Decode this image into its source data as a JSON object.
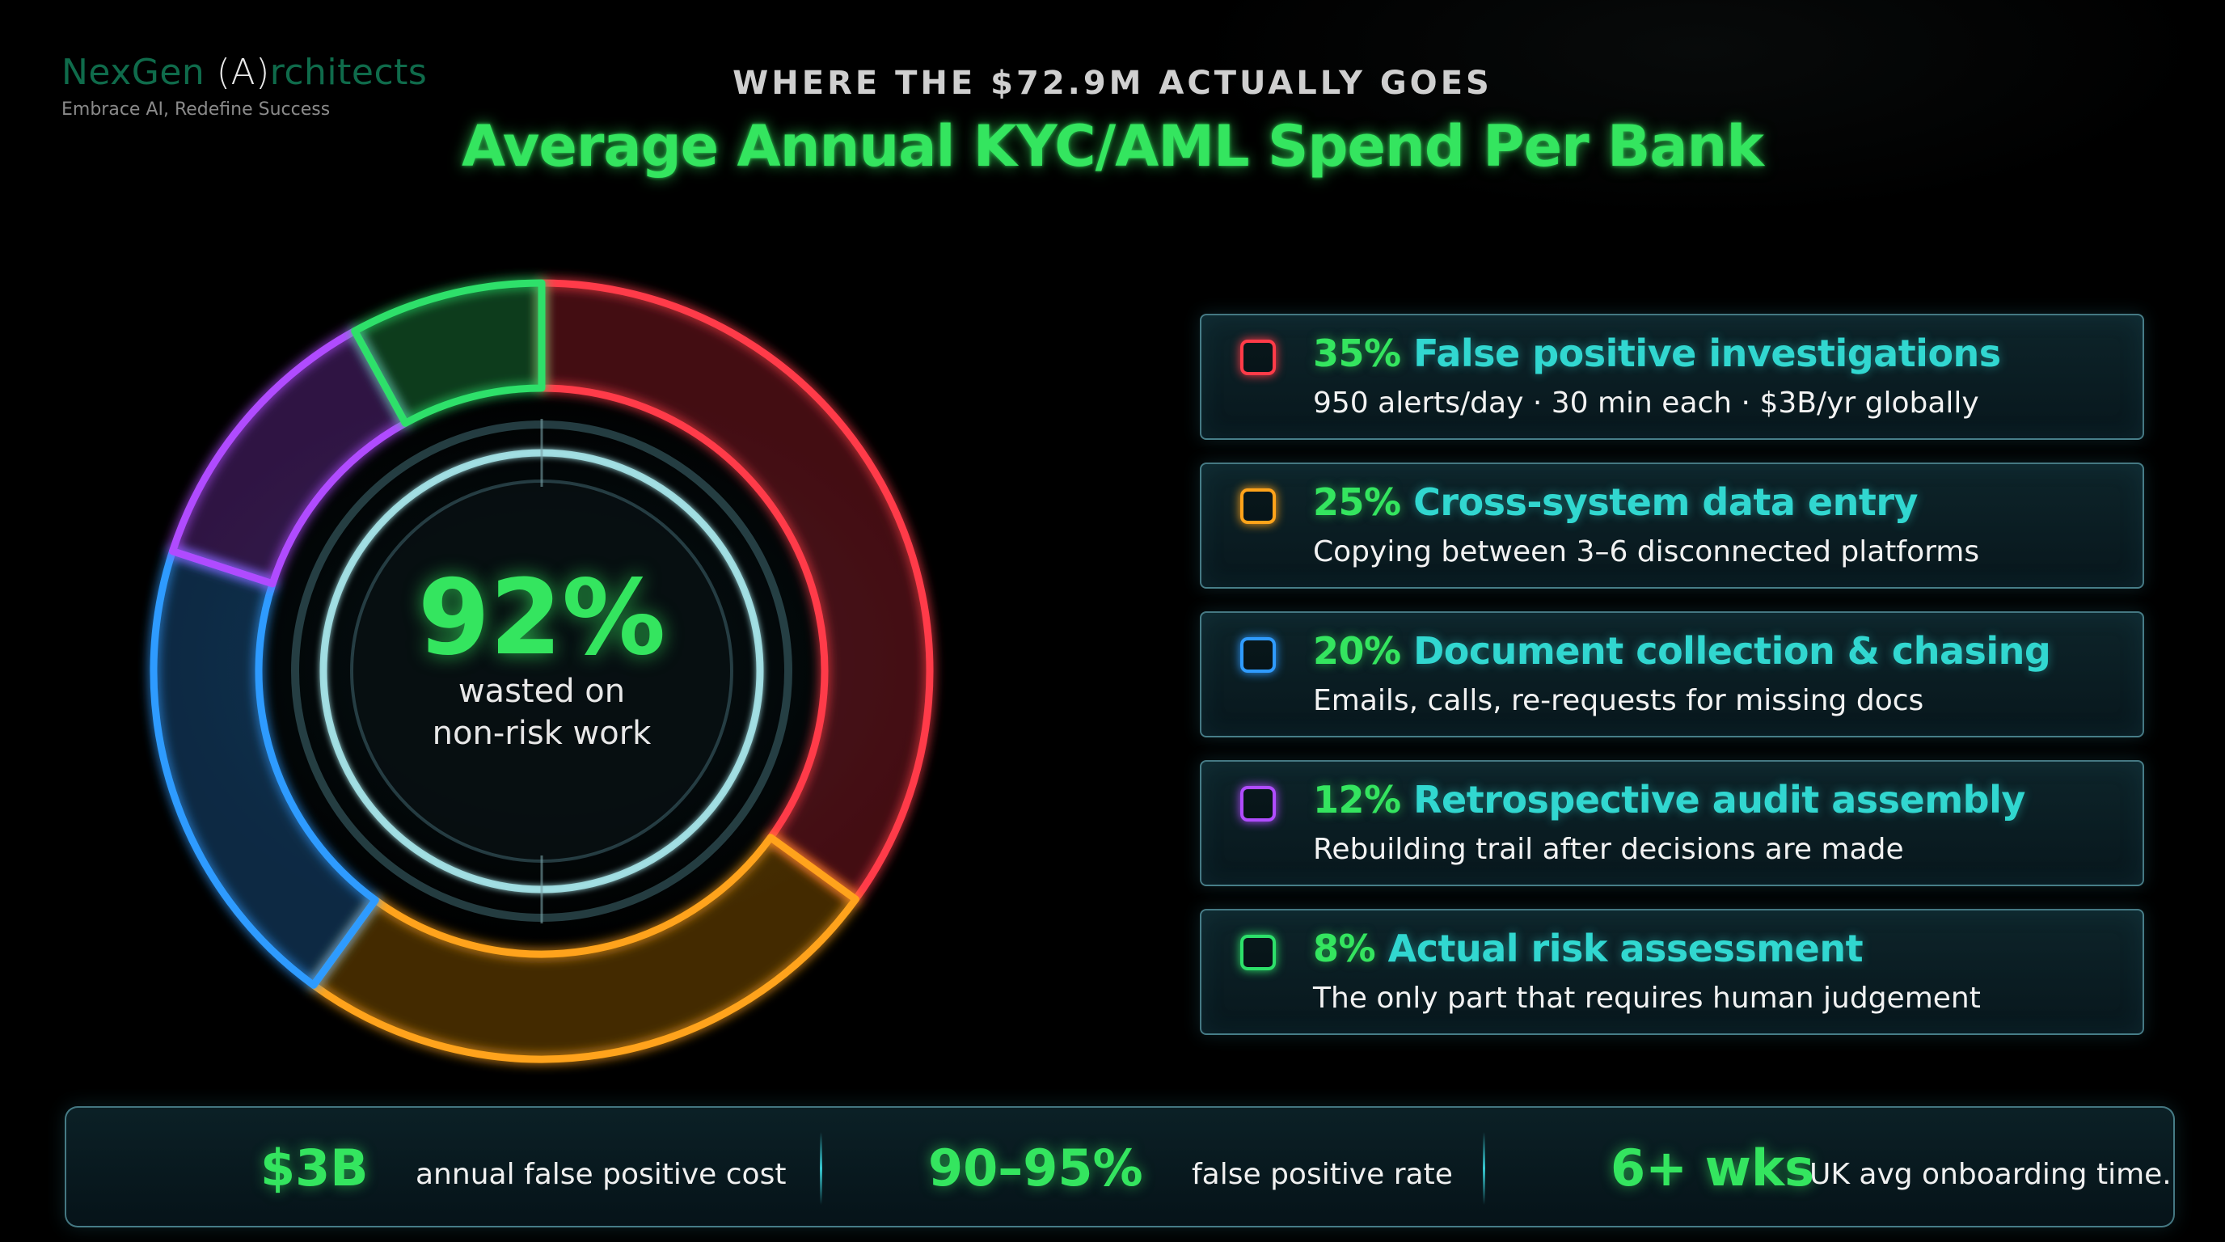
{
  "brand": {
    "name_prefix": "NexGen ",
    "name_paren": "(A)",
    "name_suffix": "rchitects",
    "tagline": "Embrace AI, Redefine Success"
  },
  "header": {
    "supertitle": "WHERE THE $72.9M ACTUALLY GOES",
    "title": "Average Annual KYC/AML Spend Per Bank"
  },
  "center": {
    "value": "92%",
    "label_line1": "wasted on",
    "label_line2": "non-risk work"
  },
  "chart_data": {
    "type": "pie",
    "title": "Average Annual KYC/AML Spend Per Bank",
    "categories": [
      "False positive investigations",
      "Cross-system data entry",
      "Document collection & chasing",
      "Retrospective audit assembly",
      "Actual risk assessment"
    ],
    "values": [
      35,
      25,
      20,
      12,
      8
    ],
    "colors": [
      "#ff3b48",
      "#ffa31a",
      "#2f9bff",
      "#b04cff",
      "#2de06a"
    ],
    "start": "top, clockwise",
    "center_annotation": "92% wasted on non-risk work"
  },
  "breakdown": [
    {
      "pct": "35%",
      "label": "False positive investigations",
      "detail": "950 alerts/day · 30 min each · $3B/yr globally",
      "color": "#ff3b48"
    },
    {
      "pct": "25%",
      "label": "Cross-system data entry",
      "detail": "Copying between 3–6 disconnected platforms",
      "color": "#ffa31a"
    },
    {
      "pct": "20%",
      "label": "Document collection & chasing",
      "detail": "Emails, calls, re-requests for missing docs",
      "color": "#2f9bff"
    },
    {
      "pct": "12%",
      "label": "Retrospective audit assembly",
      "detail": "Rebuilding trail after decisions are made",
      "color": "#b04cff"
    },
    {
      "pct": "8%",
      "label": "Actual risk assessment",
      "detail": "The only part that requires human judgement",
      "color": "#2de06a"
    }
  ],
  "stats": [
    {
      "value": "$3B",
      "label": "annual false positive cost"
    },
    {
      "value": "90–95%",
      "label": "false positive rate"
    },
    {
      "value": "6+ wks",
      "label": "UK avg onboarding time."
    }
  ]
}
